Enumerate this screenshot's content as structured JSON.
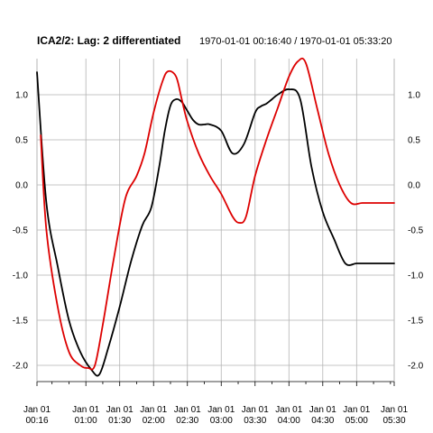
{
  "chart_data": {
    "type": "line",
    "title": "ICA2/2:  Lag: 2 differentiated",
    "subtitle": "1970-01-01 00:16:40 / 1970-01-01 05:33:20",
    "xlabel": "",
    "ylabel": "",
    "x_unit": "minutes after 1970-01-01 00:00",
    "xlim": [
      16.67,
      333.33
    ],
    "ylim": [
      -2.18,
      1.4
    ],
    "grid": true,
    "legend": "none",
    "y_ticks": [
      -2.0,
      -1.5,
      -1.0,
      -0.5,
      0.0,
      0.5,
      1.0
    ],
    "y_tick_labels": [
      "-2.0",
      "-1.5",
      "-1.0",
      "-0.5",
      "0.0",
      "0.5",
      "1.0"
    ],
    "x_ticks": [
      16.67,
      60,
      90,
      120,
      150,
      180,
      210,
      240,
      270,
      300,
      333.33
    ],
    "x_tick_labels": [
      [
        "Jan 01",
        "00:16"
      ],
      [
        "Jan 01",
        "01:00"
      ],
      [
        "Jan 01",
        "01:30"
      ],
      [
        "Jan 01",
        "02:00"
      ],
      [
        "Jan 01",
        "02:30"
      ],
      [
        "Jan 01",
        "03:00"
      ],
      [
        "Jan 01",
        "03:30"
      ],
      [
        "Jan 01",
        "04:00"
      ],
      [
        "Jan 01",
        "04:30"
      ],
      [
        "Jan 01",
        "05:00"
      ],
      [
        "Jan 01",
        "05:30"
      ]
    ],
    "series": [
      {
        "color": "#000000",
        "x": [
          16.67,
          25,
          35,
          45,
          55,
          65,
          72,
          80,
          90,
          100,
          110,
          118,
          125,
          130,
          135,
          140,
          145,
          150,
          155,
          160,
          165,
          170,
          180,
          190,
          200,
          210,
          215,
          220,
          225,
          230,
          240,
          250,
          260,
          270,
          280,
          290,
          300,
          310,
          320,
          333.33
        ],
        "y": [
          1.25,
          -0.2,
          -0.9,
          -1.5,
          -1.85,
          -2.05,
          -2.1,
          -1.8,
          -1.35,
          -0.85,
          -0.45,
          -0.25,
          0.2,
          0.6,
          0.88,
          0.95,
          0.92,
          0.82,
          0.72,
          0.67,
          0.67,
          0.67,
          0.6,
          0.35,
          0.45,
          0.8,
          0.87,
          0.9,
          0.95,
          1.0,
          1.06,
          0.95,
          0.2,
          -0.3,
          -0.6,
          -0.87,
          -0.87,
          -0.87,
          -0.87,
          -0.87
        ]
      },
      {
        "color": "#dd0000",
        "x": [
          20,
          25,
          35,
          45,
          55,
          62,
          68,
          75,
          85,
          95,
          105,
          112,
          120,
          128,
          133,
          140,
          145,
          150,
          160,
          170,
          180,
          190,
          196,
          202,
          210,
          220,
          230,
          240,
          248,
          255,
          265,
          275,
          285,
          295,
          305,
          315,
          325,
          333.33
        ],
        "y": [
          0.55,
          -0.5,
          -1.35,
          -1.85,
          -2.0,
          -2.03,
          -2.0,
          -1.55,
          -0.8,
          -0.15,
          0.1,
          0.35,
          0.8,
          1.15,
          1.26,
          1.2,
          0.95,
          0.7,
          0.35,
          0.1,
          -0.1,
          -0.35,
          -0.42,
          -0.35,
          0.1,
          0.5,
          0.85,
          1.2,
          1.37,
          1.35,
          0.85,
          0.35,
          0.0,
          -0.2,
          -0.2,
          -0.2,
          -0.2,
          -0.2
        ]
      }
    ]
  }
}
